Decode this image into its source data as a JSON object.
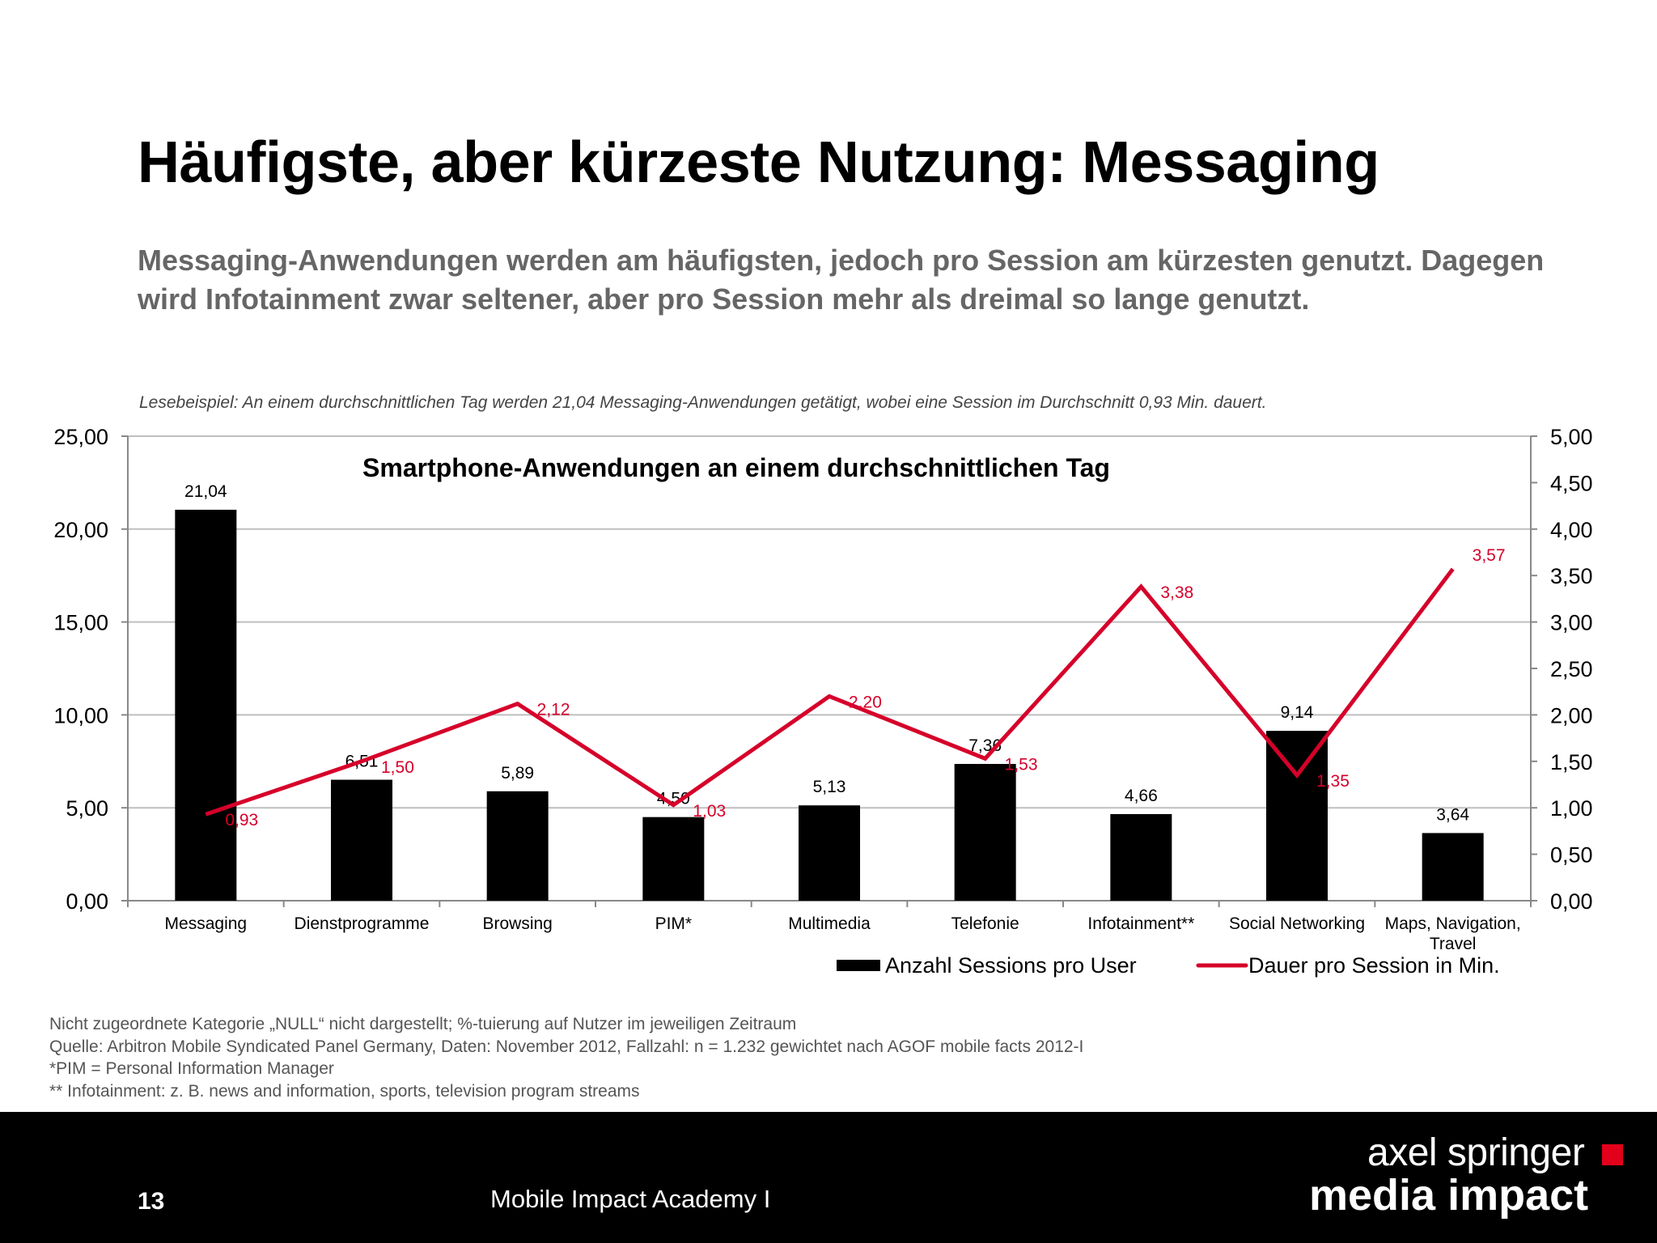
{
  "slide": {
    "title": "Häufigste, aber kürzeste Nutzung: Messaging",
    "subtitle": "Messaging-Anwendungen werden am häufigsten, jedoch pro Session am kürzesten genutzt. Dagegen wird Infotainment zwar seltener, aber pro Session mehr als dreimal so lange genutzt.",
    "reading_example": "Lesebeispiel: An einem durchschnittlichen Tag werden 21,04 Messaging-Anwendungen getätigt, wobei eine Session im Durchschnitt 0,93 Min. dauert."
  },
  "footnotes": [
    "Nicht zugeordnete Kategorie „NULL“ nicht dargestellt; %-tuierung auf Nutzer im jeweiligen Zeitraum",
    "Quelle: Arbitron Mobile Syndicated Panel Germany, Daten: November 2012, Fallzahl: n = 1.232 gewichtet nach AGOF mobile facts 2012-I",
    "*PIM = Personal Information Manager",
    "** Infotainment: z. B. news and information, sports, television program streams"
  ],
  "footer": {
    "page_number": "13",
    "event_name": "Mobile Impact Academy I",
    "logo_line1": "axel springer",
    "logo_line2": "media impact"
  },
  "colors": {
    "bar": "#000000",
    "line": "#d6002a",
    "logo_accent": "#e2001a",
    "grid": "#bfbfbf",
    "axis": "#888888",
    "subtitle": "#666666"
  },
  "chart_data": {
    "type": "bar",
    "title": "Smartphone-Anwendungen an einem durchschnittlichen Tag",
    "categories": [
      "Messaging",
      "Dienstprogramme",
      "Browsing",
      "PIM*",
      "Multimedia",
      "Telefonie",
      "Infotainment**",
      "Social Networking",
      "Maps, Navigation, Travel"
    ],
    "series": [
      {
        "name": "Anzahl Sessions pro User",
        "type": "bar",
        "axis": "left",
        "values": [
          21.04,
          6.51,
          5.89,
          4.5,
          5.13,
          7.36,
          4.66,
          9.14,
          3.64
        ],
        "labels": [
          "21,04",
          "6,51",
          "5,89",
          "4,50",
          "5,13",
          "7,36",
          "4,66",
          "9,14",
          "3,64"
        ]
      },
      {
        "name": "Dauer pro Session in Min.",
        "type": "line",
        "axis": "right",
        "values": [
          0.93,
          1.5,
          2.12,
          1.03,
          2.2,
          1.53,
          3.38,
          1.35,
          3.57
        ],
        "labels": [
          "0,93",
          "1,50",
          "2,12",
          "1,03",
          "2,20",
          "1,53",
          "3,38",
          "1,35",
          "3,57"
        ]
      }
    ],
    "y_left": {
      "min": 0,
      "max": 25,
      "ticks": [
        "0,00",
        "5,00",
        "10,00",
        "15,00",
        "20,00",
        "25,00"
      ]
    },
    "y_right": {
      "min": 0,
      "max": 5,
      "ticks": [
        "0,00",
        "0,50",
        "1,00",
        "1,50",
        "2,00",
        "2,50",
        "3,00",
        "3,50",
        "4,00",
        "4,50",
        "5,00"
      ]
    },
    "xlabel": "",
    "ylabel": "",
    "grid": true,
    "legend_position": "bottom-right"
  }
}
